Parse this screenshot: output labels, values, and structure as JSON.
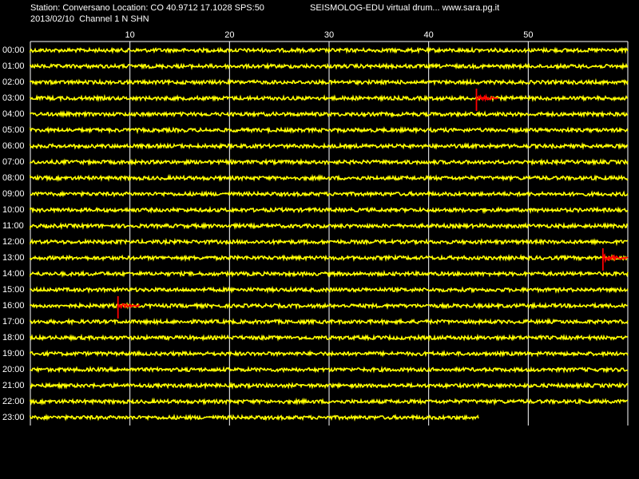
{
  "header": {
    "line1": "Station: Conversano Location: CO 40.9712 17.1028 SPS:50",
    "line2": "2013/02/10  Channel 1 N SHN",
    "right": "SEISMOLOG-EDU virtual drum... www.sara.pg.it"
  },
  "x_ticks": [
    "10",
    "20",
    "30",
    "40",
    "50"
  ],
  "x_tick_minutes": [
    10,
    20,
    30,
    40,
    50
  ],
  "x_range_minutes": [
    0,
    60
  ],
  "hours": [
    "00:00",
    "01:00",
    "02:00",
    "03:00",
    "04:00",
    "05:00",
    "06:00",
    "07:00",
    "08:00",
    "09:00",
    "10:00",
    "11:00",
    "12:00",
    "13:00",
    "14:00",
    "15:00",
    "16:00",
    "17:00",
    "18:00",
    "19:00",
    "20:00",
    "21:00",
    "22:00",
    "23:00"
  ],
  "last_trace_end_minute": 45,
  "events": [
    {
      "hour_index": 3,
      "start_minute": 44.8,
      "end_minute": 47
    },
    {
      "hour_index": 13,
      "start_minute": 57.5,
      "end_minute": 60
    },
    {
      "hour_index": 16,
      "start_minute": 8.8,
      "end_minute": 11
    }
  ],
  "colors": {
    "background": "#000000",
    "trace": "#ffff00",
    "event": "#ff0000",
    "grid": "#ffffff",
    "text": "#ffffff"
  }
}
